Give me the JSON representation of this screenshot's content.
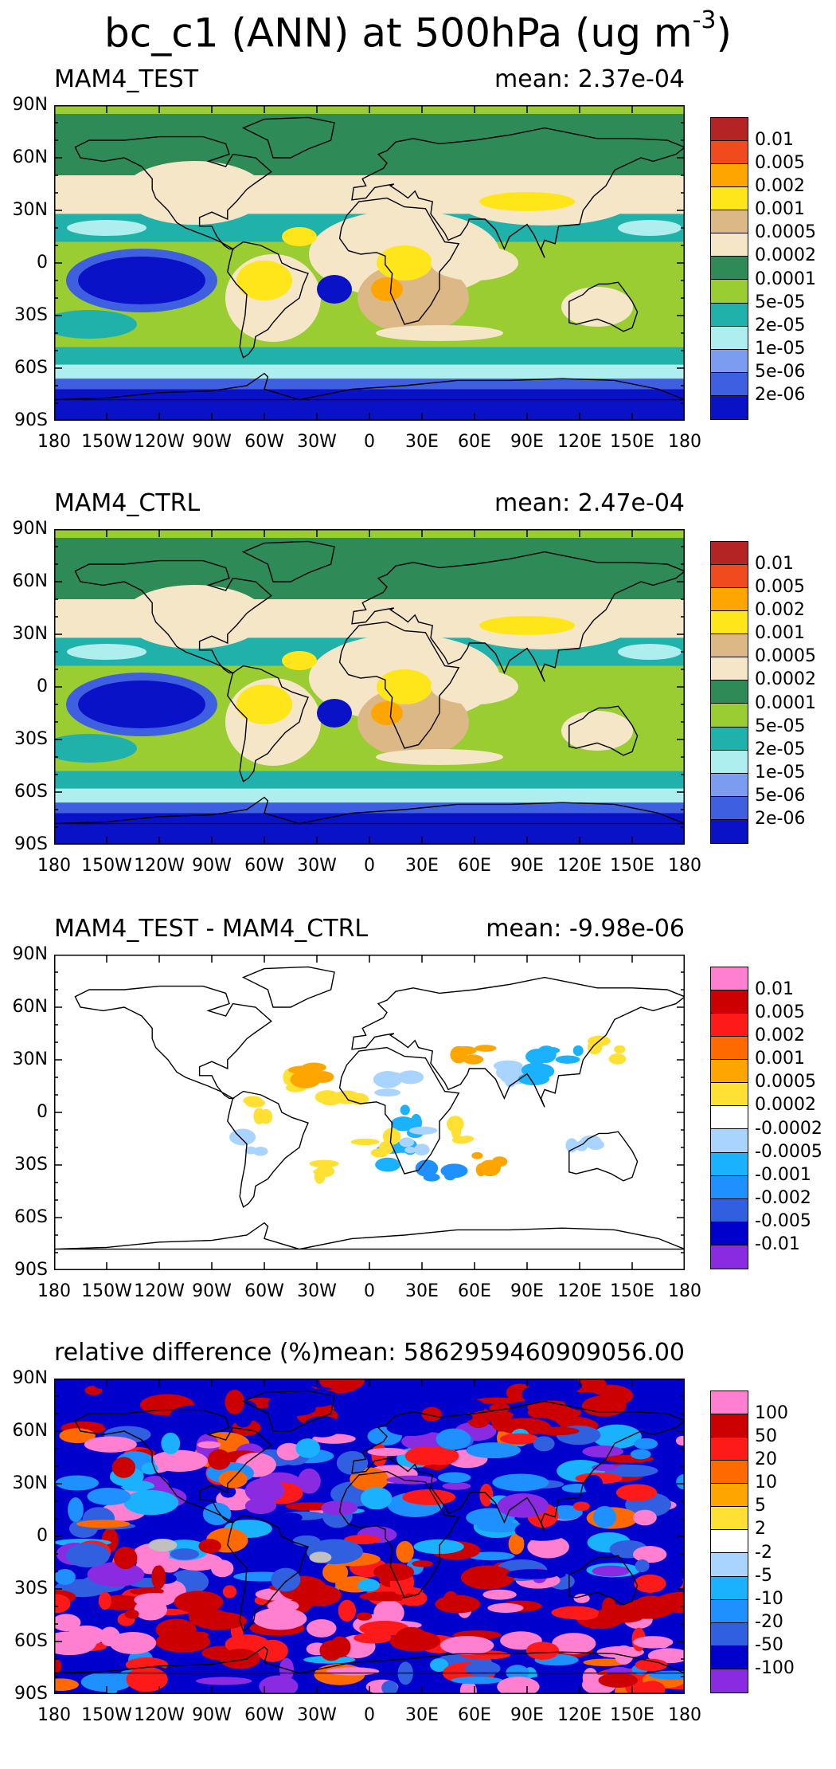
{
  "figure_title": "bc_c1 (ANN) at 500hPa (ug m",
  "figure_title_sup": "-3",
  "figure_title_close": ")",
  "x_ticks": [
    "180",
    "150W",
    "120W",
    "90W",
    "60W",
    "30W",
    "0",
    "30E",
    "60E",
    "90E",
    "120E",
    "150E",
    "180"
  ],
  "y_ticks": [
    "90N",
    "60N",
    "30N",
    "0",
    "30S",
    "60S",
    "90S"
  ],
  "panels": [
    {
      "left_label": "MAM4_TEST",
      "right_label": "mean: 2.37e-04",
      "legend": [
        "0.01",
        "0.005",
        "0.002",
        "0.001",
        "0.0005",
        "0.0002",
        "0.0001",
        "5e-05",
        "2e-05",
        "1e-05",
        "5e-06",
        "2e-06"
      ],
      "colors": [
        "#b52424",
        "#f04a1e",
        "#ffa500",
        "#ffe61a",
        "#dcb886",
        "#f5e6c8",
        "#2e8b57",
        "#9acd32",
        "#20b2aa",
        "#afeeee",
        "#7b9cf0",
        "#3d5fe0",
        "#0a12c8"
      ]
    },
    {
      "left_label": "MAM4_CTRL",
      "right_label": "mean: 2.47e-04",
      "legend": [
        "0.01",
        "0.005",
        "0.002",
        "0.001",
        "0.0005",
        "0.0002",
        "0.0001",
        "5e-05",
        "2e-05",
        "1e-05",
        "5e-06",
        "2e-06"
      ],
      "colors": [
        "#b52424",
        "#f04a1e",
        "#ffa500",
        "#ffe61a",
        "#dcb886",
        "#f5e6c8",
        "#2e8b57",
        "#9acd32",
        "#20b2aa",
        "#afeeee",
        "#7b9cf0",
        "#3d5fe0",
        "#0a12c8"
      ]
    },
    {
      "left_label": "MAM4_TEST - MAM4_CTRL",
      "right_label": "mean: -9.98e-06",
      "legend": [
        "0.01",
        "0.005",
        "0.002",
        "0.001",
        "0.0005",
        "0.0002",
        "-0.0002",
        "-0.0005",
        "-0.001",
        "-0.002",
        "-0.005",
        "-0.01"
      ],
      "colors": [
        "#ff7fd0",
        "#cc0000",
        "#ff1a1a",
        "#ff6a00",
        "#ffa500",
        "#ffe033",
        "#ffffff",
        "#a8d4ff",
        "#1ab2ff",
        "#1e90ff",
        "#3060e0",
        "#0000cd",
        "#8a2be2"
      ]
    },
    {
      "left_label": "relative difference (%)",
      "right_label": "mean: 5862959460909056.00",
      "legend": [
        "100",
        "50",
        "20",
        "10",
        "5",
        "2",
        "-2",
        "-5",
        "-10",
        "-20",
        "-50",
        "-100"
      ],
      "colors": [
        "#ff7fd0",
        "#cc0000",
        "#ff1a1a",
        "#ff6a00",
        "#ffa500",
        "#ffe033",
        "#ffffff",
        "#a8d4ff",
        "#1ab2ff",
        "#1e90ff",
        "#3060e0",
        "#0000cd",
        "#8a2be2"
      ]
    }
  ]
}
